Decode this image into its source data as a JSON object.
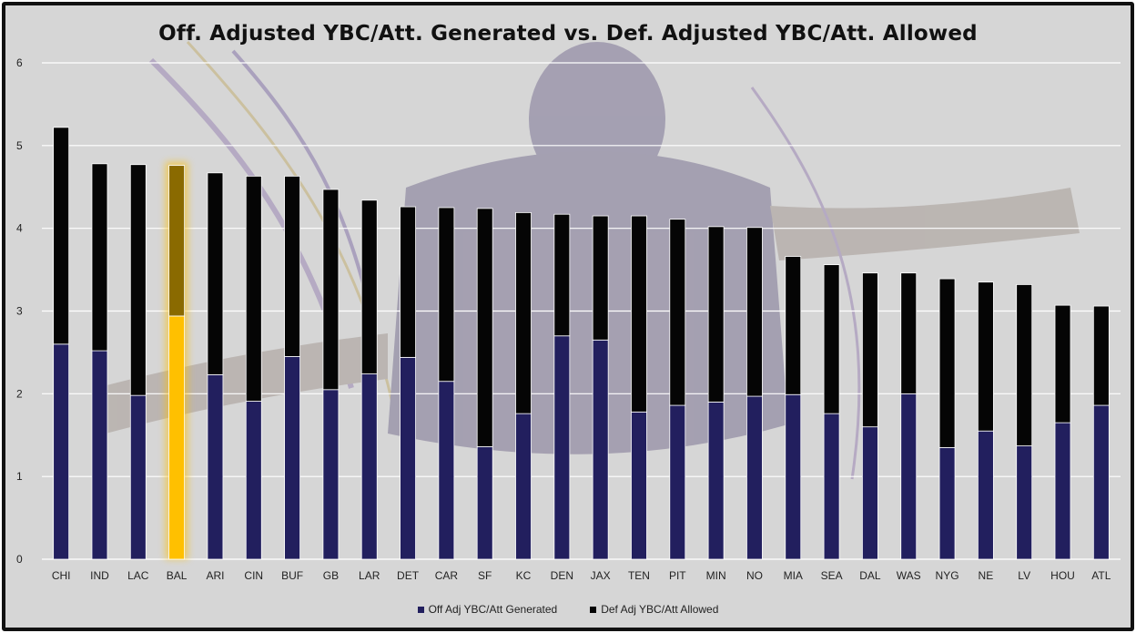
{
  "chart_data": {
    "type": "bar",
    "stacked": true,
    "title": "Off. Adjusted YBC/Att. Generated vs. Def. Adjusted YBC/Att. Allowed",
    "xlabel": "",
    "ylabel": "",
    "ylim": [
      0,
      6
    ],
    "yticks": [
      0,
      1,
      2,
      3,
      4,
      5,
      6
    ],
    "grid": true,
    "legend_position": "bottom",
    "categories": [
      "CHI",
      "IND",
      "LAC",
      "BAL",
      "ARI",
      "CIN",
      "BUF",
      "GB",
      "LAR",
      "DET",
      "CAR",
      "SF",
      "KC",
      "DEN",
      "JAX",
      "TEN",
      "PIT",
      "MIN",
      "NO",
      "MIA",
      "SEA",
      "DAL",
      "WAS",
      "NYG",
      "NE",
      "LV",
      "HOU",
      "ATL"
    ],
    "highlight_category": "BAL",
    "series": [
      {
        "name": "Off Adj YBC/Att Generated",
        "color": "#221f5e",
        "highlight_color": "#ffc000",
        "values": [
          2.6,
          2.52,
          1.98,
          2.94,
          2.23,
          1.91,
          2.45,
          2.05,
          2.24,
          2.44,
          2.15,
          1.36,
          1.76,
          2.7,
          2.65,
          1.78,
          1.86,
          1.9,
          1.97,
          1.99,
          1.76,
          1.6,
          2.0,
          1.35,
          1.55,
          1.37,
          1.65,
          1.86
        ]
      },
      {
        "name": "Def Adj YBC/Att Allowed",
        "color": "#050505",
        "highlight_color": "#8a6a00",
        "values": [
          2.62,
          2.26,
          2.79,
          1.82,
          2.44,
          2.72,
          2.18,
          2.42,
          2.1,
          1.82,
          2.1,
          2.88,
          2.43,
          1.47,
          1.5,
          2.37,
          2.25,
          2.12,
          2.04,
          1.67,
          1.8,
          1.86,
          1.46,
          2.04,
          1.8,
          1.95,
          1.42,
          1.2
        ]
      }
    ]
  }
}
